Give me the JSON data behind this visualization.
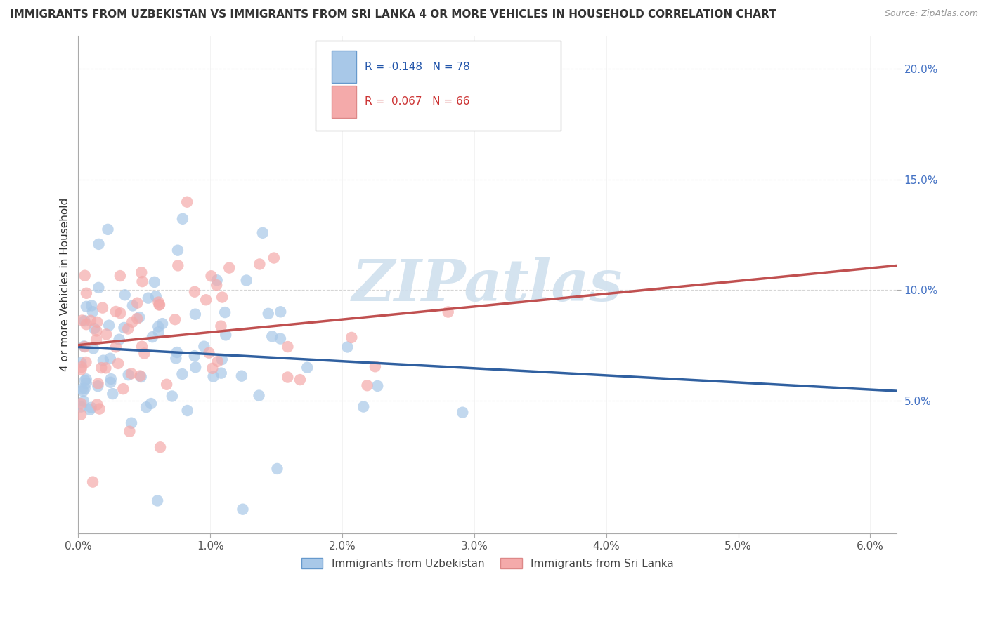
{
  "title": "IMMIGRANTS FROM UZBEKISTAN VS IMMIGRANTS FROM SRI LANKA 4 OR MORE VEHICLES IN HOUSEHOLD CORRELATION CHART",
  "source": "Source: ZipAtlas.com",
  "ylabel": "4 or more Vehicles in Household",
  "ytick_vals": [
    0.05,
    0.1,
    0.15,
    0.2
  ],
  "ytick_labels": [
    "5.0%",
    "10.0%",
    "15.0%",
    "20.0%"
  ],
  "xtick_vals": [
    0.0,
    0.01,
    0.02,
    0.03,
    0.04,
    0.05,
    0.06
  ],
  "xtick_labels": [
    "0.0%",
    "1.0%",
    "2.0%",
    "3.0%",
    "4.0%",
    "5.0%",
    "6.0%"
  ],
  "xlim": [
    0.0,
    0.062
  ],
  "ylim": [
    -0.01,
    0.215
  ],
  "legend_line1": "R = -0.148   N = 78",
  "legend_line2": "R =  0.067   N = 66",
  "color_uzbek": "#a8c8e8",
  "color_sri": "#f4aaaa",
  "line_color_uzbek": "#3060a0",
  "line_color_sri": "#c05050",
  "background_color": "#ffffff",
  "watermark_text": "ZIPatlas",
  "n_uzbek": 78,
  "n_sri": 66,
  "seed_uzbek": 17,
  "seed_sri": 99
}
